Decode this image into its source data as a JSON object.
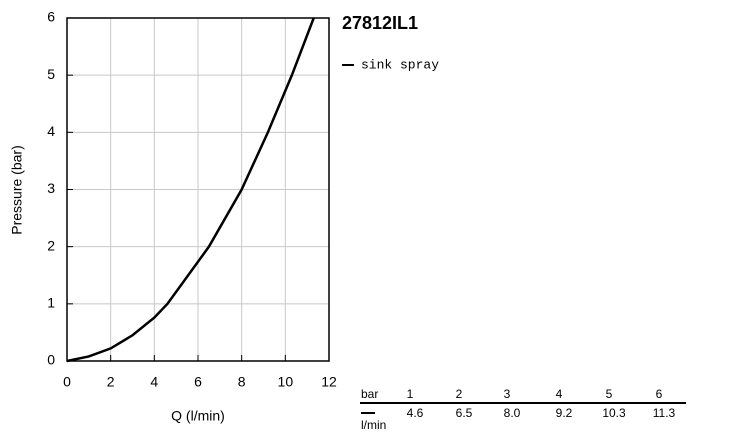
{
  "chart_data": {
    "type": "line",
    "title": "27812IL1",
    "x_label": "Q (l/min)",
    "y_label": "Pressure (bar)",
    "x": [
      0,
      1,
      2,
      3,
      4,
      4.6,
      6.5,
      8.0,
      9.2,
      10.3,
      11.3
    ],
    "series": [
      {
        "name": "sink spray",
        "color": "#000000",
        "values": [
          0,
          0.08,
          0.22,
          0.45,
          0.76,
          1,
          2,
          3,
          4,
          5,
          6
        ]
      }
    ],
    "xlim": [
      0,
      12
    ],
    "xticks": [
      0,
      2,
      4,
      6,
      8,
      10,
      12
    ],
    "ylim": [
      0,
      6
    ],
    "yticks": [
      0,
      1,
      2,
      3,
      4,
      5,
      6
    ],
    "grid": true
  },
  "table": {
    "header_label": "bar",
    "row_label": "l/min",
    "header": [
      "1",
      "2",
      "3",
      "4",
      "5",
      "6"
    ],
    "values": [
      "4.6",
      "6.5",
      "8.0",
      "9.2",
      "10.3",
      "11.3"
    ]
  }
}
